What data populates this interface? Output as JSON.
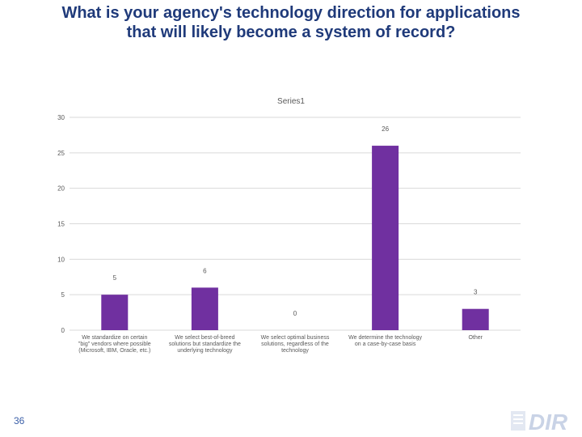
{
  "slide": {
    "title_line1": "What is your agency's technology direction for applications",
    "title_line2": "that will likely become a system of record?",
    "page_number": "36",
    "logo_text": "DIR"
  },
  "colors": {
    "bar": "#7030a0",
    "title": "#1f3a7a",
    "grid": "#d9d9d9",
    "text": "#595959",
    "page_number": "#3b5fa8",
    "logo": "#c9d3e6"
  },
  "chart_data": {
    "type": "bar",
    "title": "Series1",
    "xlabel": "",
    "ylabel": "",
    "ylim": [
      0,
      30
    ],
    "yticks": [
      0,
      5,
      10,
      15,
      20,
      25,
      30
    ],
    "grid": true,
    "categories": [
      [
        "We standardize on certain",
        "\"big\" vendors where possible",
        "(Microsoft, IBM, Oracle, etc.)"
      ],
      [
        "We select best-of-breed",
        "solutions but standardize the",
        "underlying technology"
      ],
      [
        "We select optimal business",
        "solutions, regardless of the",
        "technology"
      ],
      [
        "We determine the technology",
        "on a case-by-case basis"
      ],
      [
        "Other"
      ]
    ],
    "series": [
      {
        "name": "Series1",
        "values": [
          5,
          6,
          0,
          26,
          3
        ]
      }
    ]
  }
}
